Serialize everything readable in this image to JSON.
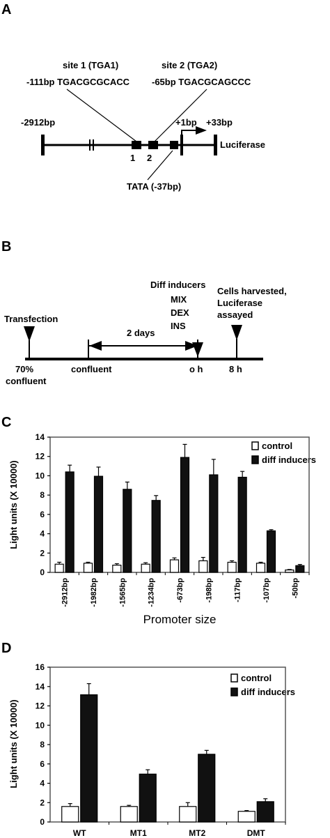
{
  "panelA": {
    "letter": "A",
    "site1_name": "site 1 (TGA1)",
    "site1_seq": "-111bp TGACGCGCACC",
    "site2_name": "site 2 (TGA2)",
    "site2_seq": "-65bp TGACGCAGCCC",
    "start": "-2912bp",
    "tss": "+1bp",
    "end": "+33bp",
    "reporter": "Luciferase",
    "site1_num": "1",
    "site2_num": "2",
    "tata": "TATA (-37bp)"
  },
  "panelB": {
    "letter": "B",
    "transfection": "Transfection",
    "confluent70_a": "70%",
    "confluent70_b": "confluent",
    "confluent": "confluent",
    "duration": "2 days",
    "inducers_title": "Diff inducers",
    "inducer1": "MIX",
    "inducer2": "DEX",
    "inducer3": "INS",
    "zero_h": "o h",
    "harvest1": "Cells harvested,",
    "harvest2": "Luciferase",
    "harvest3": "assayed",
    "eight_h": "8 h"
  },
  "chart_data": [
    {
      "panel": "C",
      "type": "bar",
      "categories": [
        "-2912bp",
        "-1982bp",
        "-1565bp",
        "-1234bp",
        "-673bp",
        "-198bp",
        "-117bp",
        "-107bp",
        "-50bp"
      ],
      "series": [
        {
          "name": "control",
          "values": [
            0.85,
            0.95,
            0.75,
            0.85,
            1.3,
            1.2,
            1.05,
            0.95,
            0.25
          ],
          "errors": [
            0.2,
            0.1,
            0.15,
            0.15,
            0.2,
            0.35,
            0.15,
            0.1,
            0.05
          ],
          "color": "#ffffff"
        },
        {
          "name": "diff inducers",
          "values": [
            10.4,
            9.95,
            8.6,
            7.45,
            11.9,
            10.1,
            9.85,
            4.3,
            0.7
          ],
          "errors": [
            0.7,
            0.95,
            0.75,
            0.5,
            1.35,
            1.6,
            0.6,
            0.12,
            0.12
          ],
          "color": "#111111"
        }
      ],
      "ylabel": "Light units (X 10000)",
      "xlabel": "Promoter size",
      "ylim": [
        0,
        14
      ],
      "yticks": [
        0,
        2,
        4,
        6,
        8,
        10,
        12,
        14
      ],
      "legend": "top-right"
    },
    {
      "panel": "D",
      "type": "bar",
      "categories": [
        "WT",
        "MT1",
        "MT2",
        "DMT"
      ],
      "series": [
        {
          "name": "control",
          "values": [
            1.6,
            1.6,
            1.6,
            1.1
          ],
          "errors": [
            0.3,
            0.12,
            0.4,
            0.08
          ],
          "color": "#ffffff"
        },
        {
          "name": "diff inducers",
          "values": [
            13.15,
            4.95,
            7.0,
            2.1
          ],
          "errors": [
            1.15,
            0.45,
            0.4,
            0.3
          ],
          "color": "#111111"
        }
      ],
      "ylabel": "Light units (X 10000)",
      "ylim": [
        0,
        16
      ],
      "yticks": [
        0,
        2,
        4,
        6,
        8,
        10,
        12,
        14,
        16
      ],
      "legend": "top-right"
    }
  ]
}
